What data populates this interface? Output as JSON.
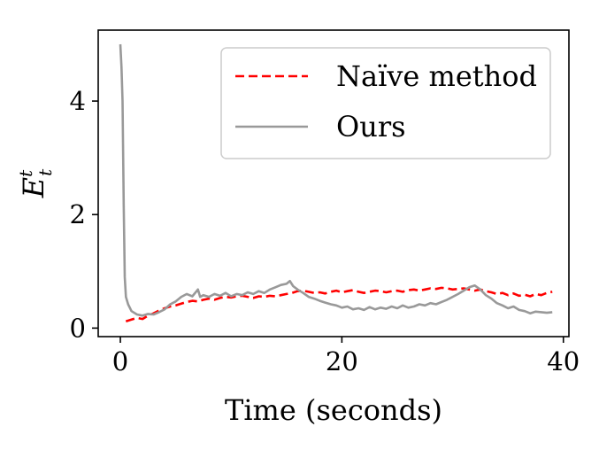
{
  "chart_data": {
    "type": "line",
    "xlabel": "Time (seconds)",
    "ylabel": "E",
    "ylabel_sup": "t",
    "ylabel_sub": "t",
    "xlim": [
      -2,
      40.5
    ],
    "ylim": [
      -0.15,
      5.25
    ],
    "xticks": [
      0,
      20,
      40
    ],
    "yticks": [
      0,
      2,
      4
    ],
    "grid": false,
    "legend_position": "top-right",
    "series": [
      {
        "name": "Naïve method",
        "color": "#ff0000",
        "style": "dashed",
        "x": [
          0.5,
          1.0,
          1.5,
          2.0,
          2.5,
          3.0,
          3.5,
          4.0,
          4.5,
          5.0,
          5.5,
          6.0,
          6.5,
          7.0,
          7.5,
          8.0,
          8.5,
          9.0,
          9.5,
          10.0,
          10.5,
          11.0,
          11.5,
          12.0,
          12.5,
          13.0,
          13.5,
          14.0,
          14.5,
          15.0,
          15.5,
          16.0,
          16.5,
          17.0,
          17.5,
          18.0,
          18.5,
          19.0,
          19.5,
          20.0,
          20.5,
          21.0,
          21.5,
          22.0,
          22.5,
          23.0,
          23.5,
          24.0,
          24.5,
          25.0,
          25.5,
          26.0,
          26.5,
          27.0,
          27.5,
          28.0,
          28.5,
          29.0,
          29.5,
          30.0,
          30.5,
          31.0,
          31.5,
          32.0,
          32.5,
          33.0,
          33.5,
          34.0,
          34.5,
          35.0,
          35.5,
          36.0,
          36.5,
          37.0,
          37.5,
          38.0,
          38.5,
          39.0
        ],
        "y": [
          0.12,
          0.15,
          0.18,
          0.16,
          0.22,
          0.26,
          0.31,
          0.35,
          0.38,
          0.4,
          0.43,
          0.46,
          0.48,
          0.47,
          0.5,
          0.52,
          0.5,
          0.53,
          0.55,
          0.54,
          0.56,
          0.57,
          0.55,
          0.53,
          0.56,
          0.55,
          0.57,
          0.56,
          0.58,
          0.6,
          0.62,
          0.65,
          0.66,
          0.64,
          0.62,
          0.63,
          0.61,
          0.64,
          0.66,
          0.63,
          0.65,
          0.67,
          0.64,
          0.62,
          0.64,
          0.66,
          0.65,
          0.63,
          0.65,
          0.66,
          0.64,
          0.67,
          0.68,
          0.66,
          0.68,
          0.7,
          0.69,
          0.71,
          0.7,
          0.68,
          0.69,
          0.7,
          0.68,
          0.66,
          0.68,
          0.65,
          0.63,
          0.6,
          0.62,
          0.58,
          0.61,
          0.57,
          0.59,
          0.56,
          0.6,
          0.58,
          0.62,
          0.64
        ]
      },
      {
        "name": "Ours",
        "color": "#999999",
        "style": "solid",
        "x": [
          0.0,
          0.1,
          0.2,
          0.3,
          0.4,
          0.5,
          0.7,
          1.0,
          1.5,
          2.0,
          2.5,
          3.0,
          3.5,
          4.0,
          4.5,
          5.0,
          5.5,
          6.0,
          6.5,
          7.0,
          7.2,
          7.5,
          8.0,
          8.5,
          9.0,
          9.5,
          10.0,
          10.5,
          11.0,
          11.5,
          12.0,
          12.5,
          13.0,
          13.5,
          14.0,
          14.5,
          15.0,
          15.3,
          15.6,
          16.0,
          16.5,
          17.0,
          17.5,
          18.0,
          18.5,
          19.0,
          19.5,
          20.0,
          20.5,
          21.0,
          21.5,
          22.0,
          22.5,
          23.0,
          23.5,
          24.0,
          24.5,
          25.0,
          25.5,
          26.0,
          26.5,
          27.0,
          27.5,
          28.0,
          28.5,
          29.0,
          29.5,
          30.0,
          30.5,
          31.0,
          31.5,
          32.0,
          32.5,
          33.0,
          33.5,
          34.0,
          34.5,
          35.0,
          35.5,
          36.0,
          36.5,
          37.0,
          37.5,
          38.0,
          38.5,
          39.0
        ],
        "y": [
          5.0,
          4.6,
          4.0,
          2.2,
          0.9,
          0.55,
          0.42,
          0.3,
          0.24,
          0.22,
          0.25,
          0.24,
          0.28,
          0.33,
          0.42,
          0.47,
          0.55,
          0.6,
          0.56,
          0.68,
          0.55,
          0.58,
          0.55,
          0.6,
          0.57,
          0.62,
          0.56,
          0.6,
          0.58,
          0.63,
          0.6,
          0.65,
          0.62,
          0.68,
          0.72,
          0.76,
          0.78,
          0.83,
          0.74,
          0.68,
          0.62,
          0.55,
          0.52,
          0.48,
          0.45,
          0.42,
          0.4,
          0.36,
          0.38,
          0.33,
          0.35,
          0.32,
          0.37,
          0.33,
          0.36,
          0.34,
          0.38,
          0.35,
          0.4,
          0.36,
          0.38,
          0.42,
          0.4,
          0.44,
          0.42,
          0.46,
          0.5,
          0.55,
          0.6,
          0.66,
          0.72,
          0.75,
          0.68,
          0.58,
          0.52,
          0.44,
          0.4,
          0.35,
          0.38,
          0.32,
          0.3,
          0.26,
          0.29,
          0.28,
          0.27,
          0.28
        ]
      }
    ]
  }
}
